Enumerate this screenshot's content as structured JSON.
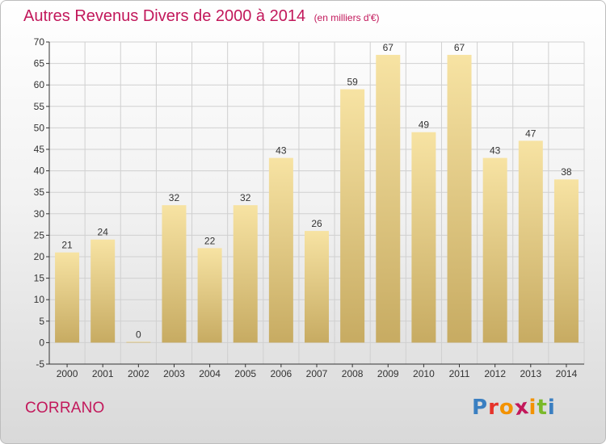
{
  "header": {
    "title": "Autres Revenus Divers de 2000 à 2014",
    "unit": "(en milliers d'€)"
  },
  "footer": {
    "place": "CORRANO",
    "brand": "Proxiti",
    "brand_colors": [
      "#3a7fc1",
      "#e6332a",
      "#f39200",
      "#c2185b",
      "#f39200",
      "#7ab929",
      "#3a7fc1"
    ]
  },
  "colors": {
    "bar_light": "#f7e3a3",
    "bar_dark": "#c7ab62",
    "title": "#c2185b",
    "grid": "#d0d0d0",
    "axis": "#333333"
  },
  "chart_data": {
    "type": "bar",
    "categories": [
      "2000",
      "2001",
      "2002",
      "2003",
      "2004",
      "2005",
      "2006",
      "2007",
      "2008",
      "2009",
      "2010",
      "2011",
      "2012",
      "2013",
      "2014"
    ],
    "values": [
      21,
      24,
      0,
      32,
      22,
      32,
      43,
      26,
      59,
      67,
      49,
      67,
      43,
      47,
      38
    ],
    "ylim": [
      -5,
      70
    ],
    "yticks": [
      -5,
      0,
      5,
      10,
      15,
      20,
      25,
      30,
      35,
      40,
      45,
      50,
      55,
      60,
      65,
      70
    ],
    "grid": true,
    "data_labels": true
  }
}
